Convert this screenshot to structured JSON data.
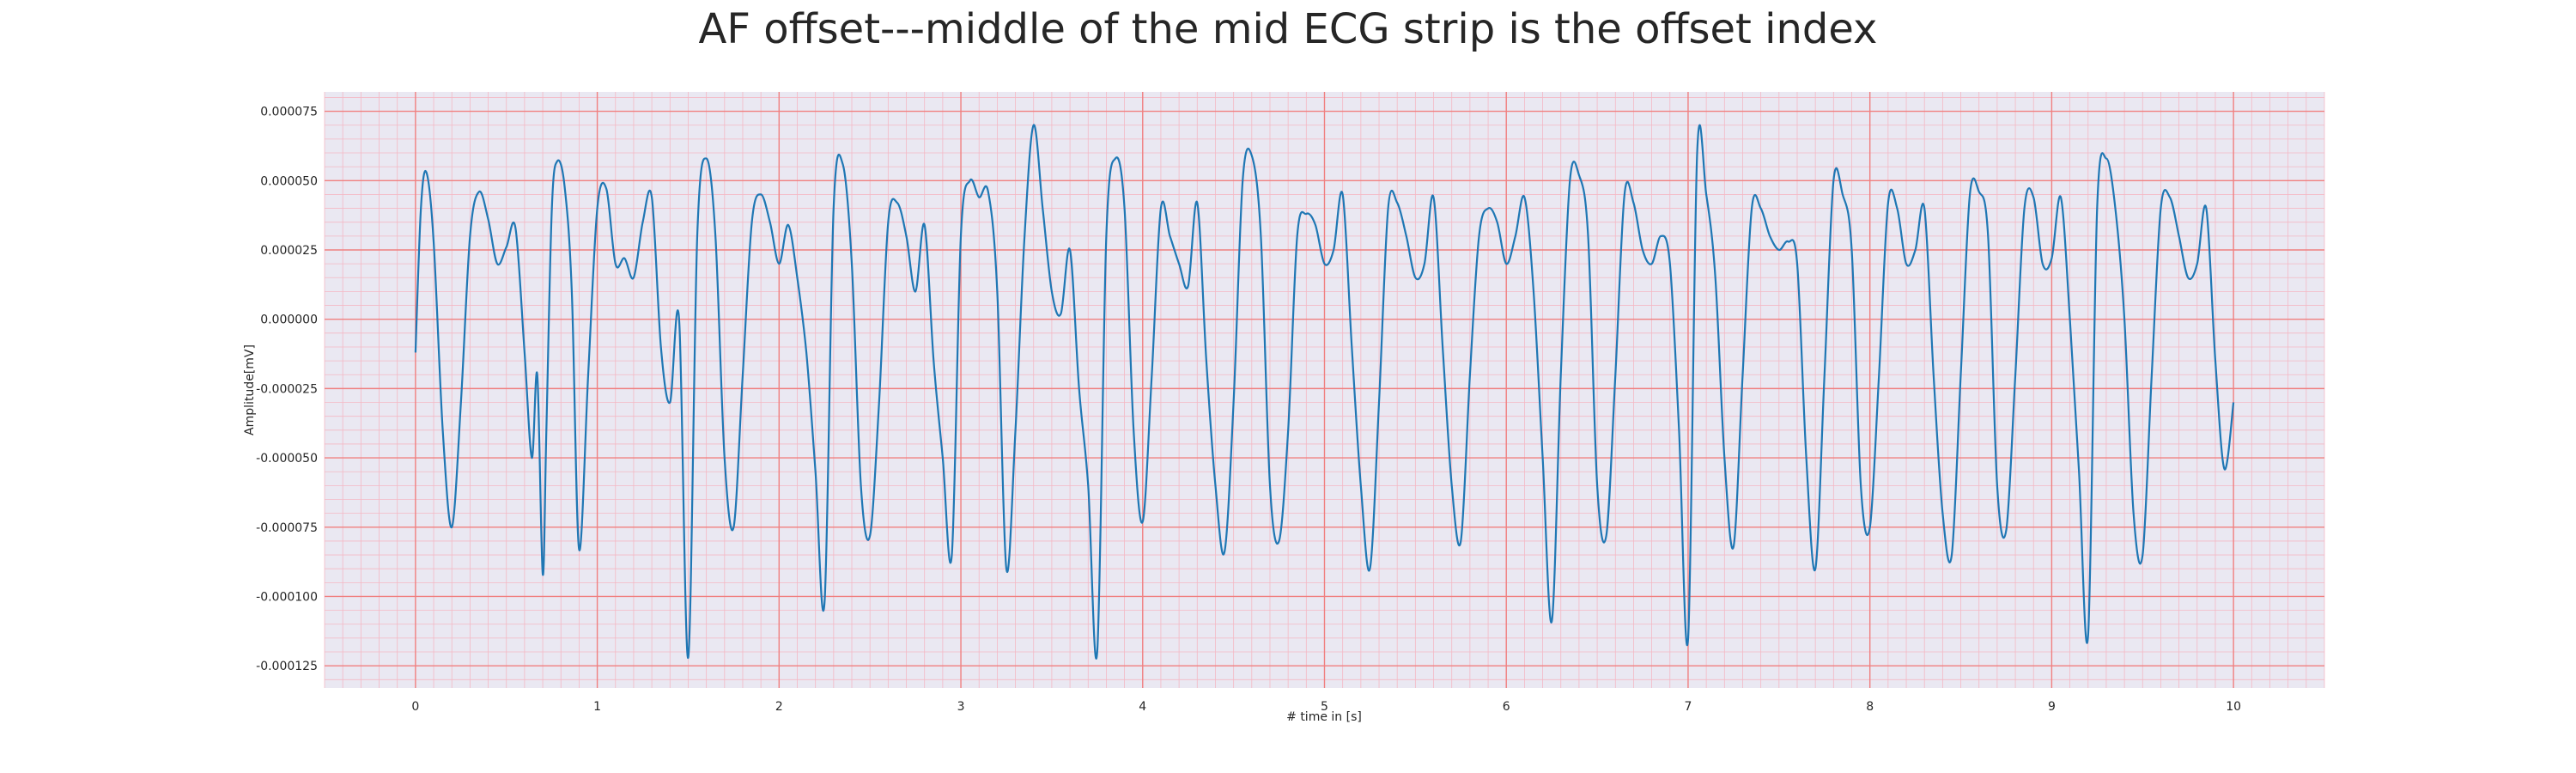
{
  "chart_data": {
    "type": "line",
    "title": "AF offset---middle of the mid ECG strip is the offset index",
    "xlabel": "# time in [s]",
    "ylabel": "Amplitude[mV]",
    "xlim": [
      -0.5,
      10.5
    ],
    "ylim": [
      -0.000133,
      8.2e-05
    ],
    "x_ticks": [
      0,
      1,
      2,
      3,
      4,
      5,
      6,
      7,
      8,
      9,
      10
    ],
    "x_tick_labels": [
      "0",
      "1",
      "2",
      "3",
      "4",
      "5",
      "6",
      "7",
      "8",
      "9",
      "10"
    ],
    "y_ticks": [
      7.5e-05,
      5e-05,
      2.5e-05,
      0.0,
      -2.5e-05,
      -5e-05,
      -7.5e-05,
      -0.0001,
      -0.000125
    ],
    "y_tick_labels": [
      "0.000075",
      "0.000050",
      "0.000025",
      "0.000000",
      "-0.000025",
      "-0.000050",
      "-0.000075",
      "-0.000100",
      "-0.000125"
    ],
    "grid": {
      "major": true,
      "minor": true
    },
    "colors": {
      "line": "#1f77b4",
      "background": "#eae8f2",
      "major_grid": "#f08080",
      "minor_grid": "#f4b8c4"
    },
    "series": [
      {
        "x": [
          0.0,
          0.03,
          0.06,
          0.1,
          0.15,
          0.2,
          0.25,
          0.3,
          0.35,
          0.4,
          0.45,
          0.5,
          0.55,
          0.6,
          0.64,
          0.67,
          0.7,
          0.72,
          0.75,
          0.78,
          0.82,
          0.86,
          0.9,
          0.95,
          1.0,
          1.05,
          1.1,
          1.15,
          1.2,
          1.25,
          1.3,
          1.35,
          1.4,
          1.45,
          1.5,
          1.55,
          1.6,
          1.65,
          1.7,
          1.75,
          1.8,
          1.85,
          1.9,
          1.95,
          2.0,
          2.05,
          2.1,
          2.15,
          2.2,
          2.25,
          2.3,
          2.35,
          2.4,
          2.45,
          2.5,
          2.55,
          2.6,
          2.65,
          2.7,
          2.75,
          2.8,
          2.85,
          2.9,
          2.95,
          3.0,
          3.05,
          3.1,
          3.15,
          3.2,
          3.25,
          3.3,
          3.35,
          3.4,
          3.45,
          3.5,
          3.55,
          3.6,
          3.65,
          3.7,
          3.75,
          3.8,
          3.85,
          3.9,
          3.95,
          4.0,
          4.05,
          4.1,
          4.15,
          4.2,
          4.25,
          4.3,
          4.35,
          4.4,
          4.45,
          4.5,
          4.55,
          4.6,
          4.65,
          4.7,
          4.75,
          4.8,
          4.85,
          4.9,
          4.95,
          5.0,
          5.05,
          5.1,
          5.15,
          5.2,
          5.25,
          5.3,
          5.35,
          5.4,
          5.45,
          5.5,
          5.55,
          5.6,
          5.65,
          5.7,
          5.75,
          5.8,
          5.85,
          5.9,
          5.95,
          6.0,
          6.05,
          6.1,
          6.15,
          6.2,
          6.25,
          6.3,
          6.35,
          6.4,
          6.45,
          6.5,
          6.55,
          6.6,
          6.65,
          6.7,
          6.75,
          6.8,
          6.85,
          6.9,
          6.95,
          7.0,
          7.05,
          7.1,
          7.15,
          7.2,
          7.25,
          7.3,
          7.35,
          7.4,
          7.45,
          7.5,
          7.55,
          7.6,
          7.65,
          7.7,
          7.75,
          7.8,
          7.85,
          7.9,
          7.95,
          8.0,
          8.05,
          8.1,
          8.15,
          8.2,
          8.25,
          8.3,
          8.35,
          8.4,
          8.45,
          8.5,
          8.55,
          8.6,
          8.65,
          8.7,
          8.75,
          8.8,
          8.85,
          8.9,
          8.95,
          9.0,
          9.05,
          9.1,
          9.15,
          9.2,
          9.25,
          9.3,
          9.35,
          9.4,
          9.45,
          9.5,
          9.55,
          9.6,
          9.65,
          9.7,
          9.75,
          9.8,
          9.85,
          9.9,
          9.95,
          10.0
        ],
        "y": [
          -1.2e-05,
          4e-05,
          5.3e-05,
          2.8e-05,
          -4e-05,
          -7.5e-05,
          -3e-05,
          3e-05,
          4.6e-05,
          3.6e-05,
          2e-05,
          2.6e-05,
          3.3e-05,
          -1.2e-05,
          -5e-05,
          -2e-05,
          -9.2e-05,
          -4e-05,
          4e-05,
          5.7e-05,
          4.8e-05,
          1e-05,
          -8.3e-05,
          -2e-05,
          4e-05,
          4.7e-05,
          2e-05,
          2.2e-05,
          1.5e-05,
          3.5e-05,
          4.4e-05,
          -1e-05,
          -3e-05,
          0.0,
          -0.000122,
          3e-05,
          5.8e-05,
          3e-05,
          -5e-05,
          -7.5e-05,
          -2e-05,
          3.5e-05,
          4.5e-05,
          3.5e-05,
          2e-05,
          3.4e-05,
          1.5e-05,
          -1.2e-05,
          -5.5e-05,
          -0.000102,
          4e-05,
          5.6e-05,
          2e-05,
          -6e-05,
          -7.8e-05,
          -3e-05,
          3.5e-05,
          4.2e-05,
          3e-05,
          1e-05,
          3.4e-05,
          -1.5e-05,
          -5e-05,
          -8.5e-05,
          3e-05,
          5e-05,
          4.4e-05,
          4.6e-05,
          1e-05,
          -9e-05,
          -4e-05,
          3e-05,
          7e-05,
          4e-05,
          1e-05,
          2e-06,
          2.5e-05,
          -2.5e-05,
          -6e-05,
          -0.00012,
          3e-05,
          5.8e-05,
          4e-05,
          -4e-05,
          -7.3e-05,
          -2e-05,
          4e-05,
          3e-05,
          2e-05,
          1.2e-05,
          4.2e-05,
          -1.5e-05,
          -6e-05,
          -8.4e-05,
          -3e-05,
          5e-05,
          5.9e-05,
          3e-05,
          -6e-05,
          -8e-05,
          -4e-05,
          3e-05,
          3.8e-05,
          3.4e-05,
          2e-05,
          2.5e-05,
          4.5e-05,
          -1e-05,
          -6e-05,
          -9e-05,
          -3e-05,
          4e-05,
          4.2e-05,
          3e-05,
          1.5e-05,
          2e-05,
          4.4e-05,
          -1e-05,
          -6e-05,
          -8e-05,
          -2e-05,
          3e-05,
          4e-05,
          3.5e-05,
          2e-05,
          3e-05,
          4.4e-05,
          1e-05,
          -5e-05,
          -0.000109,
          -2e-05,
          5e-05,
          5.2e-05,
          3e-05,
          -6e-05,
          -7.8e-05,
          -2e-05,
          4.5e-05,
          4.2e-05,
          2.5e-05,
          2e-05,
          3e-05,
          2e-05,
          -4e-05,
          -0.000115,
          6e-05,
          4.5e-05,
          1.5e-05,
          -5e-05,
          -8.2e-05,
          -2e-05,
          4e-05,
          4e-05,
          3e-05,
          2.5e-05,
          2.8e-05,
          2e-05,
          -5e-05,
          -9e-05,
          -2e-05,
          5e-05,
          4.5e-05,
          2.5e-05,
          -6e-05,
          -7.5e-05,
          -2e-05,
          4.2e-05,
          4e-05,
          2e-05,
          2.5e-05,
          4e-05,
          -2e-05,
          -7e-05,
          -8.5e-05,
          -2e-05,
          4.5e-05,
          4.6e-05,
          3e-05,
          -6e-05,
          -7.6e-05,
          -2e-05,
          4e-05,
          4.4e-05,
          2e-05,
          2.2e-05,
          4.4e-05,
          0.0,
          -5.5e-05,
          -0.000114,
          4e-05,
          5.8e-05,
          4e-05,
          0.0,
          -7e-05,
          -8.5e-05,
          -2e-05,
          4e-05,
          4.4e-05,
          3e-05,
          1.5e-05,
          2e-05,
          4e-05,
          -1.5e-05,
          -5.4e-05,
          -3e-05
        ]
      }
    ]
  }
}
